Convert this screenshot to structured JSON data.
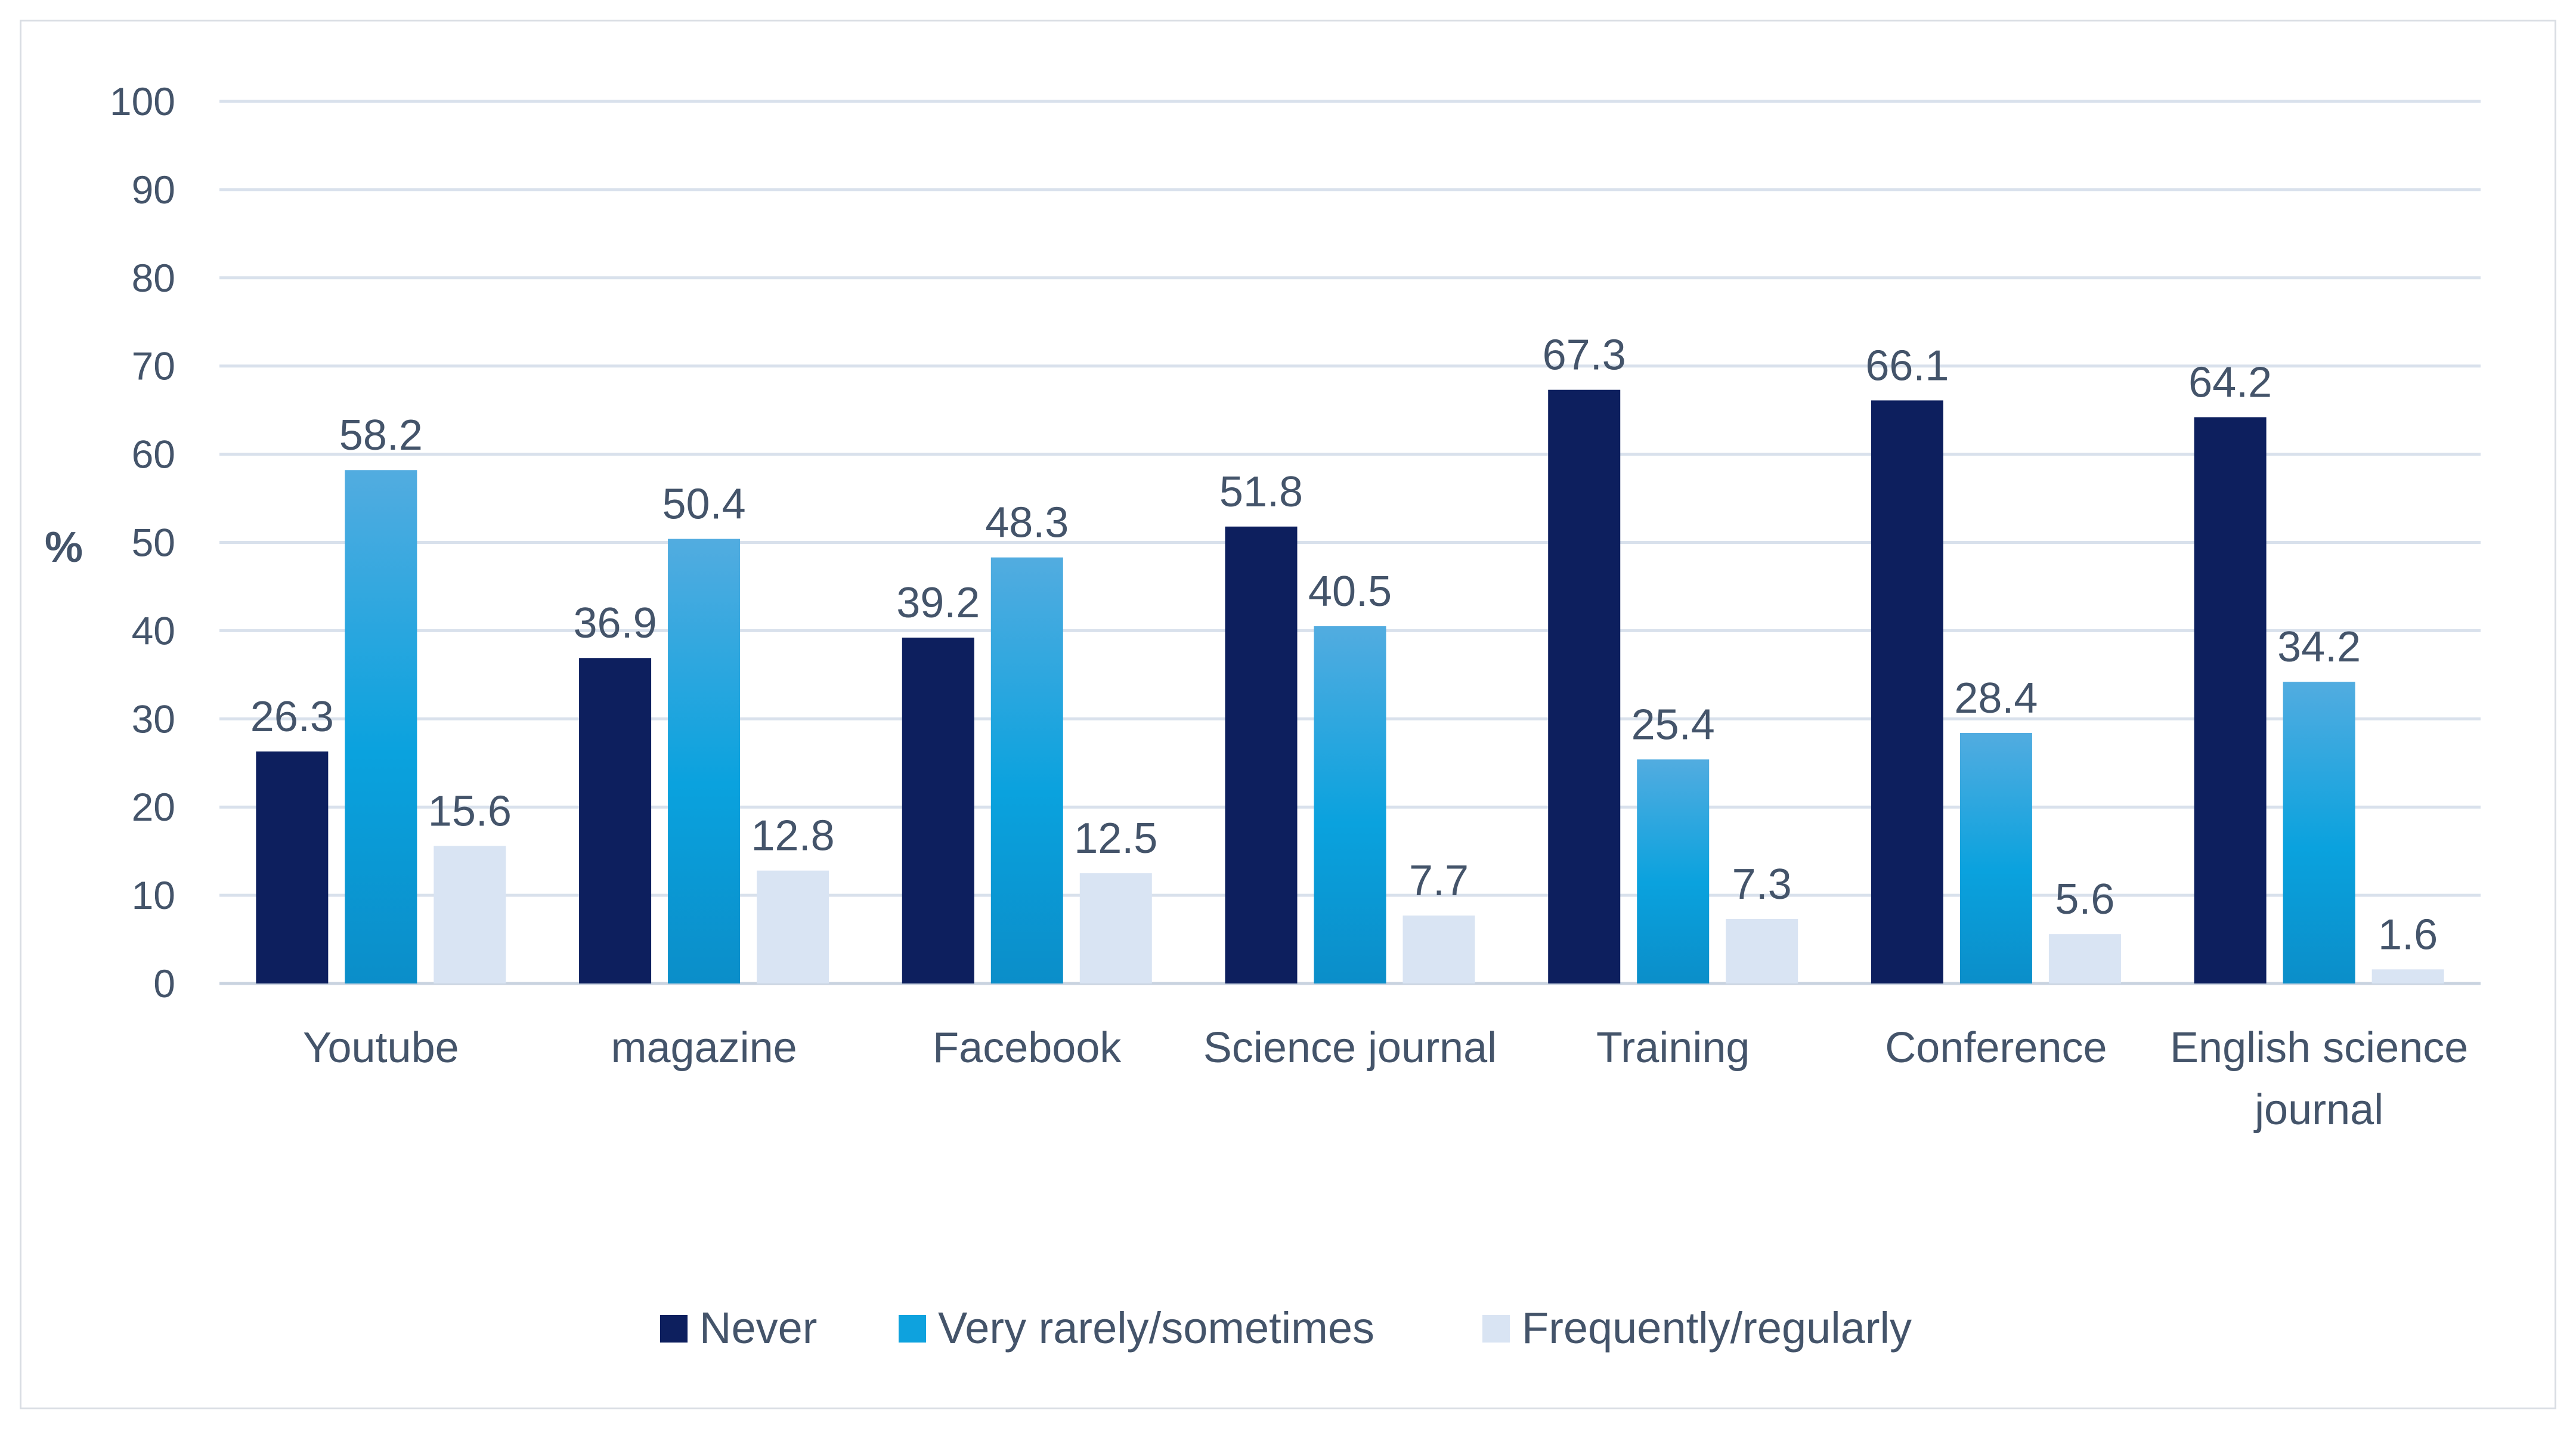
{
  "chart_data": {
    "type": "bar",
    "title": "",
    "xlabel": "",
    "ylabel": "%",
    "ylim": [
      0,
      100
    ],
    "yticks": [
      0,
      10,
      20,
      30,
      40,
      50,
      60,
      70,
      80,
      90,
      100
    ],
    "grid": true,
    "legend_position": "bottom",
    "categories": [
      [
        "Youtube"
      ],
      [
        "magazine"
      ],
      [
        "Facebook"
      ],
      [
        "Science journal"
      ],
      [
        "Training"
      ],
      [
        "Conference"
      ],
      [
        "English science",
        "journal"
      ]
    ],
    "series": [
      {
        "name": "Never",
        "color": "#0d1f5e",
        "values": [
          26.3,
          36.9,
          39.2,
          51.8,
          67.3,
          66.1,
          64.2
        ],
        "labels": [
          "26.3",
          "36.9",
          "39.2",
          "51.8",
          "67.3",
          "66.1",
          "64.2"
        ]
      },
      {
        "name": "Very rarely/sometimes",
        "color": "#0ea2de",
        "values": [
          58.2,
          50.4,
          48.3,
          40.5,
          25.4,
          28.4,
          34.2
        ],
        "labels": [
          "58.2",
          "50.4",
          "48.3",
          "40.5",
          "25.4",
          "28.4",
          "34.2"
        ]
      },
      {
        "name": "Frequently/regularly",
        "color": "#d9e4f3",
        "values": [
          15.6,
          12.8,
          12.5,
          7.7,
          7.3,
          5.6,
          1.6
        ],
        "labels": [
          "15.6",
          "12.8",
          "12.5",
          "7.7",
          "7.3",
          "5.6",
          "1.6"
        ]
      }
    ]
  }
}
